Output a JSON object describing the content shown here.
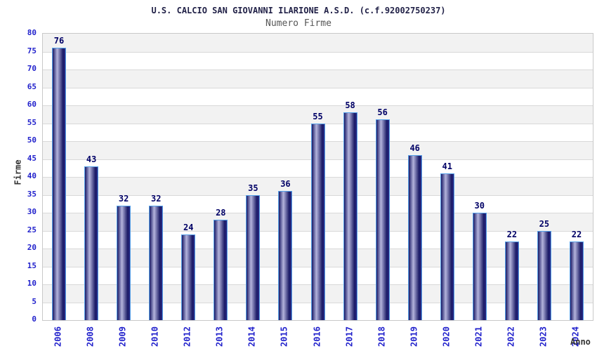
{
  "chart_data": {
    "type": "bar",
    "title": "U.S. CALCIO SAN GIOVANNI ILARIONE A.S.D. (c.f.92002750237)",
    "subtitle": "Numero Firme",
    "xlabel": "Anno",
    "ylabel": "Firme",
    "categories": [
      "2006",
      "2008",
      "2009",
      "2010",
      "2012",
      "2013",
      "2014",
      "2015",
      "2016",
      "2017",
      "2018",
      "2019",
      "2020",
      "2021",
      "2022",
      "2023",
      "2024"
    ],
    "values": [
      76,
      43,
      32,
      32,
      24,
      28,
      35,
      36,
      55,
      58,
      56,
      46,
      41,
      30,
      22,
      25,
      22
    ],
    "ylim": [
      0,
      80
    ],
    "ytick_step": 5,
    "yticks": [
      0,
      5,
      10,
      15,
      20,
      25,
      30,
      35,
      40,
      45,
      50,
      55,
      60,
      65,
      70,
      75,
      80
    ],
    "grid": true,
    "legend": "none",
    "band_pattern": "alternating gray/white horizontal bands, gray topmost",
    "colors": {
      "title": "#222248",
      "subtitle": "#565656",
      "tick_label": "#2222cc",
      "value_label": "#000066",
      "axis_title": "#333333",
      "bar_dark": "#1a1a66",
      "bar_mid": "#2a2a85",
      "bar_highlight": "#b4b4dc",
      "bar_border": "#55a0e8",
      "band_gray": "#f2f2f2",
      "band_white": "#ffffff",
      "gridline": "#d9d9d9",
      "plot_border": "#c9c9c9",
      "background": "#ffffff"
    }
  },
  "layout_note": "static chart image, no interactive controls"
}
